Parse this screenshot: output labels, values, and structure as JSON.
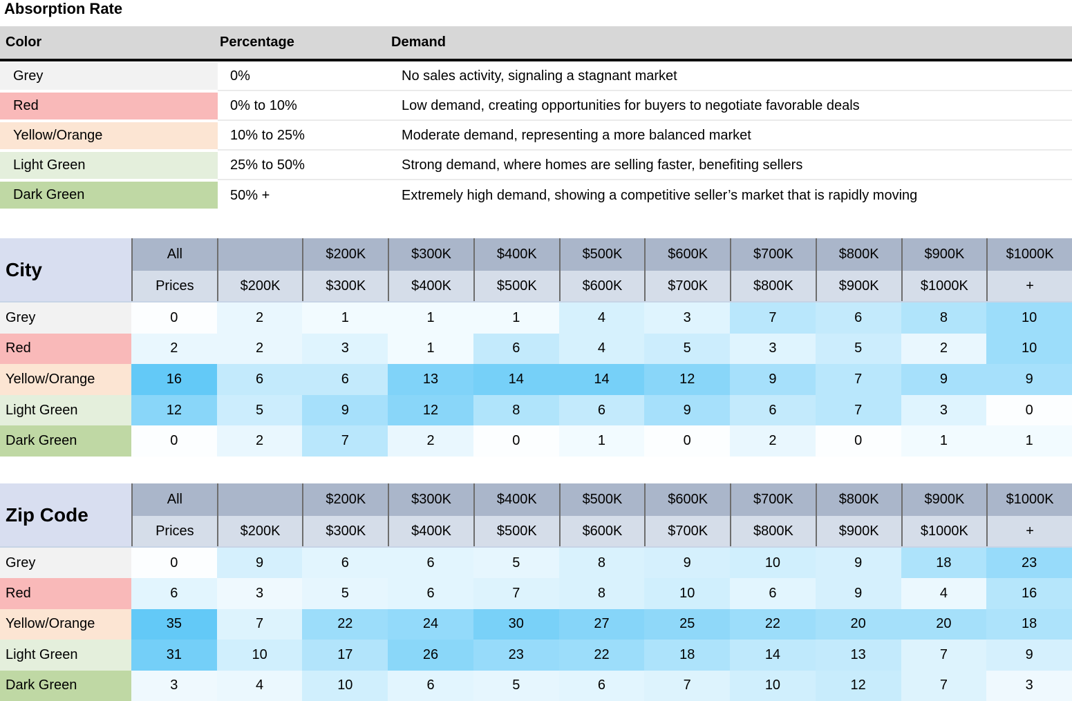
{
  "title": "Absorption Rate",
  "colors": {
    "grey": "#F2F2F2",
    "red": "#F9B9B9",
    "yellow_orange": "#FCE5D3",
    "light_green": "#E4EFDC",
    "dark_green": "#BFD8A4",
    "heat_min": "#FCFEFF",
    "heat_max": "#63C9F7",
    "header_band_top": "#AAB6CA",
    "header_band_bottom": "#D5DDE9",
    "header_label_bg": "#D8DEF0",
    "header_border": "#6D6D6D",
    "legend_header_bg": "#D7D7D7"
  },
  "legend": {
    "columns": [
      "Color",
      "Percentage",
      "Demand"
    ],
    "rows": [
      {
        "color": "Grey",
        "key": "grey",
        "percentage": "0%",
        "demand": "No sales activity, signaling a stagnant market"
      },
      {
        "color": "Red",
        "key": "red",
        "percentage": "0% to 10%",
        "demand": "Low demand, creating opportunities for buyers to negotiate favorable deals"
      },
      {
        "color": "Yellow/Orange",
        "key": "yellow_orange",
        "percentage": "10% to 25%",
        "demand": "Moderate demand, representing a more balanced market"
      },
      {
        "color": "Light Green",
        "key": "light_green",
        "percentage": "25% to 50%",
        "demand": "Strong demand, where homes are selling faster, benefiting sellers"
      },
      {
        "color": "Dark Green",
        "key": "dark_green",
        "percentage": "50% +",
        "demand": "Extremely high demand, showing a competitive seller’s market that is rapidly moving"
      }
    ]
  },
  "price_columns": [
    {
      "top": "All",
      "bottom": "Prices"
    },
    {
      "top": "",
      "bottom": "$200K"
    },
    {
      "top": "$200K",
      "bottom": "$300K"
    },
    {
      "top": "$300K",
      "bottom": "$400K"
    },
    {
      "top": "$400K",
      "bottom": "$500K"
    },
    {
      "top": "$500K",
      "bottom": "$600K"
    },
    {
      "top": "$600K",
      "bottom": "$700K"
    },
    {
      "top": "$700K",
      "bottom": "$800K"
    },
    {
      "top": "$800K",
      "bottom": "$900K"
    },
    {
      "top": "$900K",
      "bottom": "$1000K"
    },
    {
      "top": "$1000K",
      "bottom": "+"
    }
  ],
  "tables": [
    {
      "id": "city",
      "label": "City",
      "rows": [
        {
          "label": "Grey",
          "key": "grey",
          "values": [
            0,
            2,
            1,
            1,
            1,
            4,
            3,
            7,
            6,
            8,
            10
          ]
        },
        {
          "label": "Red",
          "key": "red",
          "values": [
            2,
            2,
            3,
            1,
            6,
            4,
            5,
            3,
            5,
            2,
            10
          ]
        },
        {
          "label": "Yellow/Orange",
          "key": "yellow_orange",
          "values": [
            16,
            6,
            6,
            13,
            14,
            14,
            12,
            9,
            7,
            9,
            9
          ]
        },
        {
          "label": "Light Green",
          "key": "light_green",
          "values": [
            12,
            5,
            9,
            12,
            8,
            6,
            9,
            6,
            7,
            3,
            0
          ]
        },
        {
          "label": "Dark Green",
          "key": "dark_green",
          "values": [
            0,
            2,
            7,
            2,
            0,
            1,
            0,
            2,
            0,
            1,
            1
          ]
        }
      ]
    },
    {
      "id": "zip",
      "label": "Zip Code",
      "rows": [
        {
          "label": "Grey",
          "key": "grey",
          "values": [
            0,
            9,
            6,
            6,
            5,
            8,
            9,
            10,
            9,
            18,
            23
          ]
        },
        {
          "label": "Red",
          "key": "red",
          "values": [
            6,
            3,
            5,
            6,
            7,
            8,
            10,
            6,
            9,
            4,
            16
          ]
        },
        {
          "label": "Yellow/Orange",
          "key": "yellow_orange",
          "values": [
            35,
            7,
            22,
            24,
            30,
            27,
            25,
            22,
            20,
            20,
            18
          ]
        },
        {
          "label": "Light Green",
          "key": "light_green",
          "values": [
            31,
            10,
            17,
            26,
            23,
            22,
            18,
            14,
            13,
            7,
            9
          ]
        },
        {
          "label": "Dark Green",
          "key": "dark_green",
          "values": [
            3,
            4,
            10,
            6,
            5,
            6,
            7,
            10,
            12,
            7,
            3
          ]
        }
      ]
    }
  ],
  "chart_data": [
    {
      "type": "table",
      "title": "Absorption Rate",
      "columns": [
        "Color",
        "Percentage",
        "Demand"
      ],
      "rows": [
        [
          "Grey",
          "0%",
          "No sales activity, signaling a stagnant market"
        ],
        [
          "Red",
          "0% to 10%",
          "Low demand, creating opportunities for buyers to negotiate favorable deals"
        ],
        [
          "Yellow/Orange",
          "10% to 25%",
          "Moderate demand, representing a more balanced market"
        ],
        [
          "Light Green",
          "25% to 50%",
          "Strong demand, where homes are selling faster, benefiting sellers"
        ],
        [
          "Dark Green",
          "50% +",
          "Extremely high demand, showing a competitive seller’s market that is rapidly moving"
        ]
      ]
    },
    {
      "type": "heatmap",
      "title": "City",
      "x_categories": [
        "All Prices",
        "$200K",
        "$200K $300K",
        "$300K $400K",
        "$400K $500K",
        "$500K $600K",
        "$600K $700K",
        "$700K $800K",
        "$800K $900K",
        "$900K $1000K",
        "$1000K +"
      ],
      "y_categories": [
        "Grey",
        "Red",
        "Yellow/Orange",
        "Light Green",
        "Dark Green"
      ],
      "values": [
        [
          0,
          2,
          1,
          1,
          1,
          4,
          3,
          7,
          6,
          8,
          10
        ],
        [
          2,
          2,
          3,
          1,
          6,
          4,
          5,
          3,
          5,
          2,
          10
        ],
        [
          16,
          6,
          6,
          13,
          14,
          14,
          12,
          9,
          7,
          9,
          9
        ],
        [
          12,
          5,
          9,
          12,
          8,
          6,
          9,
          6,
          7,
          3,
          0
        ],
        [
          0,
          2,
          7,
          2,
          0,
          1,
          0,
          2,
          0,
          1,
          1
        ]
      ],
      "color_scale": {
        "min_value": 0,
        "max_value": 16,
        "min_color": "#FCFEFF",
        "max_color": "#63C9F7"
      }
    },
    {
      "type": "heatmap",
      "title": "Zip Code",
      "x_categories": [
        "All Prices",
        "$200K",
        "$200K $300K",
        "$300K $400K",
        "$400K $500K",
        "$500K $600K",
        "$600K $700K",
        "$700K $800K",
        "$800K $900K",
        "$900K $1000K",
        "$1000K +"
      ],
      "y_categories": [
        "Grey",
        "Red",
        "Yellow/Orange",
        "Light Green",
        "Dark Green"
      ],
      "values": [
        [
          0,
          9,
          6,
          6,
          5,
          8,
          9,
          10,
          9,
          18,
          23
        ],
        [
          6,
          3,
          5,
          6,
          7,
          8,
          10,
          6,
          9,
          4,
          16
        ],
        [
          35,
          7,
          22,
          24,
          30,
          27,
          25,
          22,
          20,
          20,
          18
        ],
        [
          31,
          10,
          17,
          26,
          23,
          22,
          18,
          14,
          13,
          7,
          9
        ],
        [
          3,
          4,
          10,
          6,
          5,
          6,
          7,
          10,
          12,
          7,
          3
        ]
      ],
      "color_scale": {
        "min_value": 0,
        "max_value": 35,
        "min_color": "#FCFEFF",
        "max_color": "#63C9F7"
      }
    }
  ]
}
